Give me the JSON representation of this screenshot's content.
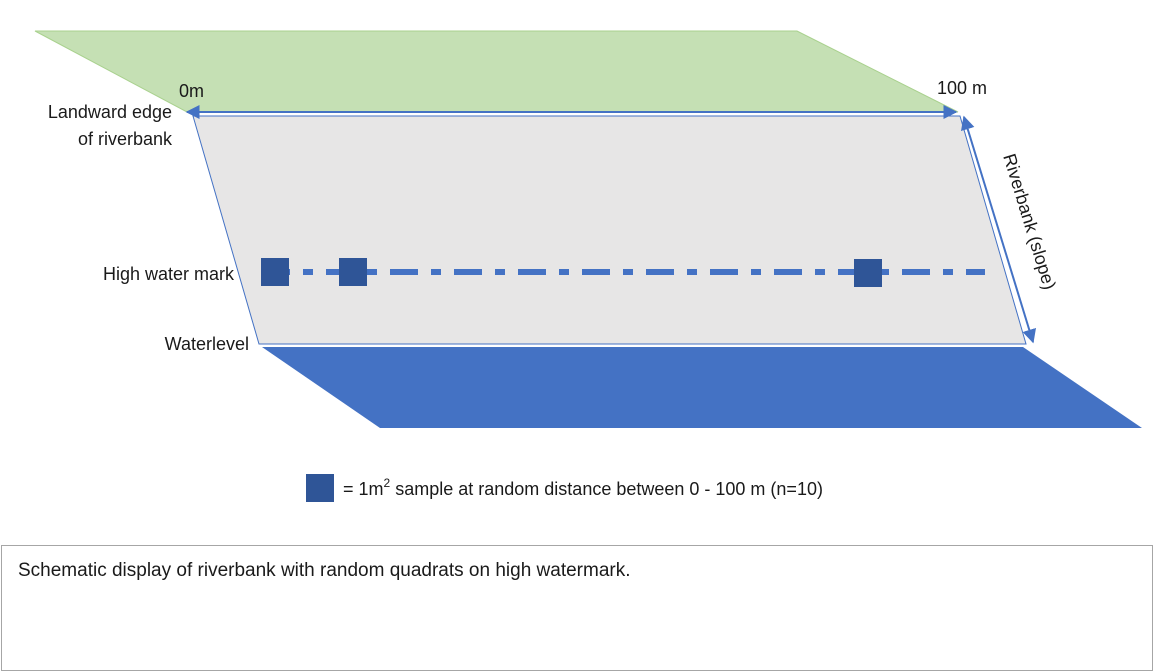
{
  "labels": {
    "start": "0m",
    "end": "100 m",
    "landward_line1": "Landward edge",
    "landward_line2": "of riverbank",
    "high_water_mark": "High water mark",
    "waterlevel": "Waterlevel",
    "slope": "Riverbank (slope)"
  },
  "legend": {
    "prefix": "= 1m",
    "superscript": "2",
    "suffix": " sample at random distance between 0 - 100 m (n=10)"
  },
  "caption": "Schematic display of riverbank with random quadrats on high watermark.",
  "colors": {
    "land": "#c5e0b4",
    "riverbank": "#e7e6e6",
    "water": "#4472c4",
    "quadrat": "#2f5597",
    "arrow": "#4472c4",
    "dash_line": "#4472c4"
  }
}
